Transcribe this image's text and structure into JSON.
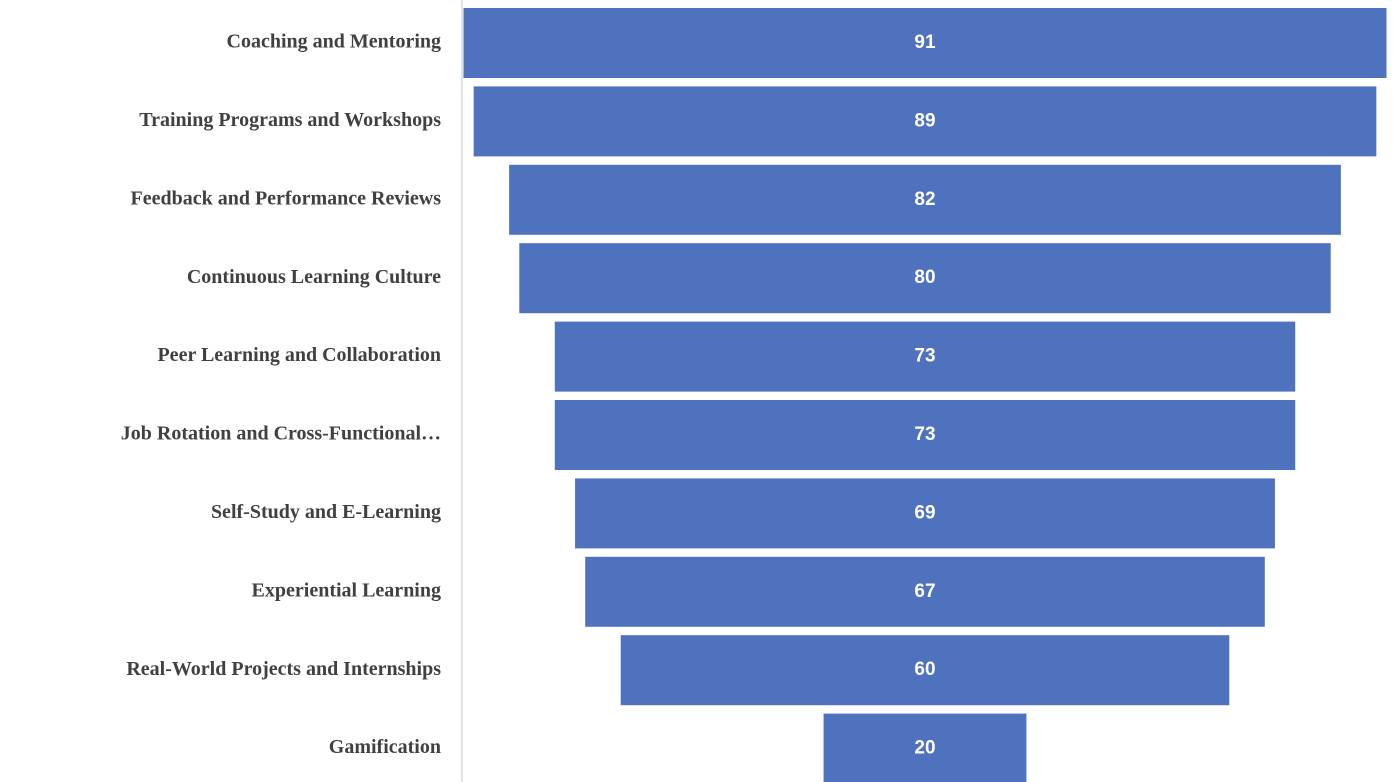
{
  "chart_data": {
    "type": "funnel",
    "categories": [
      "Coaching and Mentoring",
      "Training Programs and Workshops",
      "Feedback and Performance Reviews",
      "Continuous Learning Culture",
      "Peer Learning and Collaboration",
      "Job Rotation and Cross-Functional…",
      "Self-Study and E-Learning",
      "Experiential Learning",
      "Real-World Projects and Internships",
      "Gamification"
    ],
    "values": [
      91,
      89,
      82,
      80,
      73,
      73,
      69,
      67,
      60,
      20
    ],
    "color": "#4e72be"
  }
}
